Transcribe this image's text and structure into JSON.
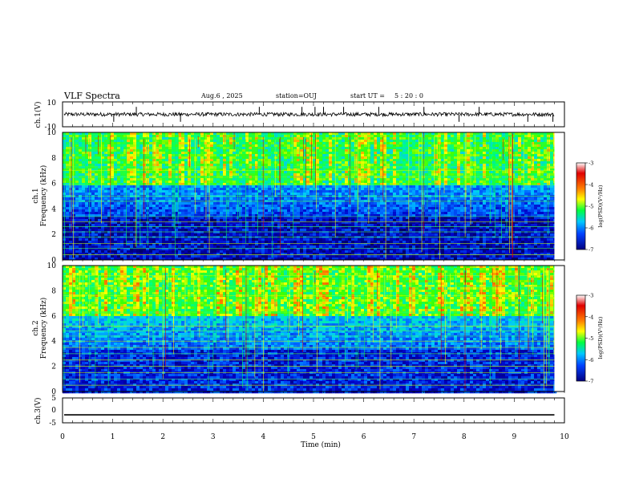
{
  "header": {
    "title": "VLF Spectra",
    "date": "Aug.6  , 2025",
    "station": "station=OUJ",
    "start_label": "start  UT =",
    "start_time": "5 : 20 : 0"
  },
  "colors": {
    "axis": "#000000",
    "spectrogram_stops": [
      "#000060",
      "#0000c8",
      "#0060ff",
      "#00c8ff",
      "#00ff80",
      "#40ff00",
      "#ffff00",
      "#ff8000",
      "#e00000"
    ]
  },
  "chart_data": [
    {
      "type": "line",
      "id": "waveform-ch1",
      "ylabel": "ch.1(V)",
      "ylim": [
        -10,
        10
      ],
      "yticks": [
        "10",
        "-10"
      ],
      "baseline": 0,
      "noise_amplitude": 1.5,
      "spikes_min": [
        1.02,
        1.47,
        2.35,
        3.92,
        4.77,
        5.03,
        5.2,
        5.6,
        6.3,
        7.2,
        7.9,
        8.3,
        9.27,
        9.77
      ],
      "xlim": [
        0,
        10
      ]
    },
    {
      "type": "heatmap",
      "id": "spectrogram-ch1",
      "ylabel": "ch.1\nFrequency  (kHz)",
      "ylim": [
        0,
        10
      ],
      "yticks": [
        "0",
        "2",
        "4",
        "6",
        "8",
        "10"
      ],
      "xlim": [
        0,
        9.8
      ],
      "colorbar": {
        "label": "log(PSD)(V²/Hz)",
        "range": [
          -7,
          -3
        ],
        "ticks": [
          "-3",
          "-4",
          "-5",
          "-6",
          "-7"
        ]
      },
      "narrowband_khz": [
        0.4,
        0.9,
        1.3,
        1.8,
        2.2,
        2.6,
        3.0,
        3.4,
        4.6,
        5.0,
        5.9,
        6.5,
        7.0,
        7.3
      ],
      "noise_floor_log_psd": -6.6,
      "upper_band_log_psd": -4.8
    },
    {
      "type": "heatmap",
      "id": "spectrogram-ch2",
      "ylabel": "ch.2\nFrequency  (kHz)",
      "ylim": [
        0,
        10
      ],
      "yticks": [
        "0",
        "2",
        "4",
        "6",
        "8",
        "10"
      ],
      "xlim": [
        0,
        9.8
      ],
      "colorbar": {
        "label": "log(PSD)(V²/Hz)",
        "range": [
          -7,
          -3
        ],
        "ticks": [
          "-3",
          "-4",
          "-5",
          "-6",
          "-7"
        ]
      },
      "narrowband_khz": [
        0.5,
        1.0,
        1.5,
        2.0,
        2.5,
        3.0,
        3.5,
        4.0,
        4.4,
        4.8,
        5.2,
        6.3,
        7.6,
        8.3,
        9.2
      ],
      "noise_floor_log_psd": -6.4,
      "upper_band_log_psd": -4.6
    },
    {
      "type": "line",
      "id": "waveform-ch3",
      "ylabel": "ch.3(V)",
      "ylim": [
        -5,
        5
      ],
      "yticks": [
        "5",
        "0",
        "-5"
      ],
      "values": [
        -1.8,
        -1.8
      ],
      "x": [
        0,
        9.8
      ],
      "xlim": [
        0,
        10
      ]
    }
  ],
  "x_axis": {
    "label": "Time  (min)",
    "range": [
      0,
      10
    ],
    "ticks": [
      "0",
      "1",
      "2",
      "3",
      "4",
      "5",
      "6",
      "7",
      "8",
      "9",
      "10"
    ]
  }
}
